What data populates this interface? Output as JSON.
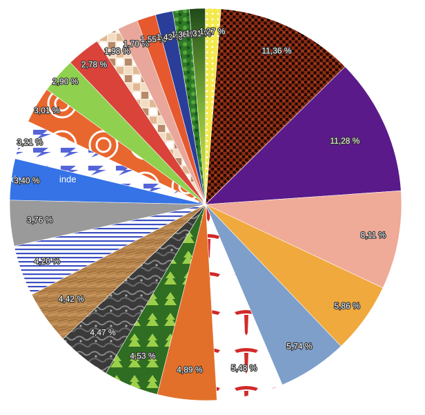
{
  "chart_data": {
    "type": "pie",
    "title": "",
    "slices": [
      {
        "value": 11.36,
        "label": "11,36 %",
        "color": "#8b2a12",
        "pattern": "crosshatch"
      },
      {
        "value": 11.28,
        "label": "11,28 %",
        "color": "#5a1a8a"
      },
      {
        "value": 8.11,
        "label": "8,11 %",
        "color": "#efaa98"
      },
      {
        "value": 5.86,
        "label": "5,86 %",
        "color": "#f0a93c"
      },
      {
        "value": 5.74,
        "label": "5,74 %",
        "color": "#7f9fcb"
      },
      {
        "value": 5.48,
        "label": "5,48 %",
        "color": "#ffffff",
        "pattern": "tesla-logo"
      },
      {
        "value": 4.89,
        "label": "4,89 %",
        "color": "#e2702a"
      },
      {
        "value": 4.53,
        "label": "4,53 %",
        "color": "#2f6d22",
        "pattern": "pine"
      },
      {
        "value": 4.47,
        "label": "4,47 %",
        "color": "#3a3a3a",
        "pattern": "stone"
      },
      {
        "value": 4.42,
        "label": "4,42 %",
        "color": "#b8864e",
        "pattern": "wood"
      },
      {
        "value": 4.2,
        "label": "4,20 %",
        "color": "#ffffff",
        "pattern": "blue-stripes"
      },
      {
        "value": 3.76,
        "label": "3,76 %",
        "color": "#9a9a9a"
      },
      {
        "value": 3.4,
        "label": "3,40 %",
        "color": "#3573e6",
        "pattern": "inde-text"
      },
      {
        "value": 3.21,
        "label": "3,21 %",
        "color": "#ffffff",
        "pattern": "blue-s"
      },
      {
        "value": 3.01,
        "label": "3,01 %",
        "color": "#e8672e",
        "pattern": "rings"
      },
      {
        "value": 2.9,
        "label": "2,90 %",
        "color": "#8fd14f"
      },
      {
        "value": 2.78,
        "label": "2,78 %",
        "color": "#d9433a"
      },
      {
        "value": 1.98,
        "label": "1,98 %",
        "color": "#ffffff",
        "pattern": "tiles"
      },
      {
        "value": 1.7,
        "label": "1,70 %",
        "color": "#e8a79a"
      },
      {
        "value": 1.55,
        "label": "1,55 %",
        "color": "#e6582e"
      },
      {
        "value": 1.43,
        "label": "1,43 %",
        "color": "#2a3e99"
      },
      {
        "value": 1.36,
        "label": "1,36 %",
        "color": "#2d7a28",
        "pattern": "leaf"
      },
      {
        "value": 1.31,
        "label": "1,31 %",
        "color": "#2f6d22",
        "pattern": "gradient-green-yellow"
      },
      {
        "value": 1.27,
        "label": "1,27 %",
        "color": "#f2e94e",
        "pattern": "yellow-dots"
      }
    ]
  }
}
